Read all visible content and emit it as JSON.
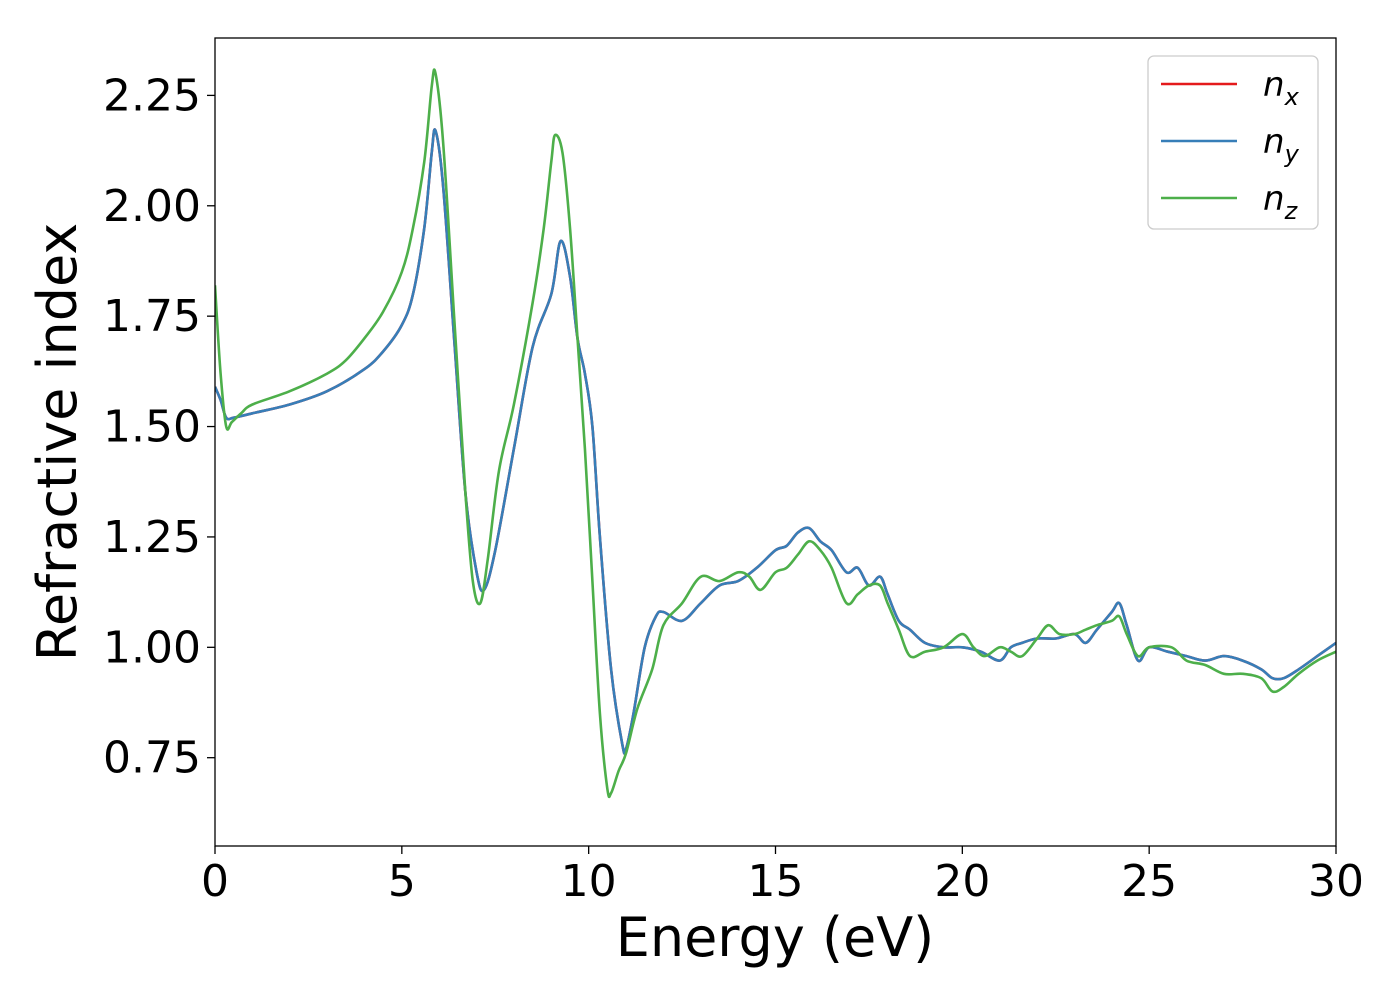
{
  "chart_data": {
    "type": "line",
    "xlabel": "Energy (eV)",
    "ylabel": "Refractive index",
    "xlim": [
      0,
      30
    ],
    "ylim": [
      0.55,
      2.38
    ],
    "xticks": [
      0,
      5,
      10,
      15,
      20,
      25,
      30
    ],
    "xtick_labels": [
      "0",
      "5",
      "10",
      "15",
      "20",
      "25",
      "30"
    ],
    "yticks": [
      0.75,
      1.0,
      1.25,
      1.5,
      1.75,
      2.0,
      2.25
    ],
    "ytick_labels": [
      "0.75",
      "1.00",
      "1.25",
      "1.50",
      "1.75",
      "2.00",
      "2.25"
    ],
    "grid": false,
    "legend_position": "top-right",
    "series": [
      {
        "name": "n",
        "subscript": "x",
        "color": "#e41a1c",
        "x": [
          0,
          0.15,
          0.3,
          0.5,
          1,
          2,
          3,
          4,
          4.5,
          5,
          5.3,
          5.6,
          5.8,
          5.9,
          6.1,
          6.4,
          6.7,
          7.0,
          7.2,
          7.5,
          8.0,
          8.5,
          9.0,
          9.25,
          9.5,
          9.7,
          9.9,
          10.1,
          10.3,
          10.6,
          10.9,
          11.0,
          11.2,
          11.5,
          11.8,
          12.0,
          12.5,
          13.0,
          13.5,
          14.0,
          14.5,
          15.0,
          15.3,
          15.6,
          15.9,
          16.2,
          16.5,
          16.9,
          17.2,
          17.5,
          17.8,
          18.0,
          18.3,
          18.6,
          19.0,
          19.5,
          20.0,
          20.5,
          21.0,
          21.3,
          21.6,
          22.0,
          22.5,
          23.0,
          23.3,
          23.6,
          24.0,
          24.2,
          24.4,
          24.7,
          25.0,
          25.5,
          26.0,
          26.5,
          27.0,
          27.5,
          28.0,
          28.3,
          28.6,
          29.0,
          29.5,
          30.0
        ],
        "values": [
          1.59,
          1.56,
          1.52,
          1.52,
          1.53,
          1.55,
          1.58,
          1.63,
          1.67,
          1.73,
          1.8,
          1.95,
          2.12,
          2.17,
          2.05,
          1.7,
          1.35,
          1.17,
          1.13,
          1.22,
          1.45,
          1.68,
          1.8,
          1.92,
          1.84,
          1.7,
          1.62,
          1.5,
          1.25,
          0.95,
          0.78,
          0.77,
          0.85,
          1.0,
          1.07,
          1.08,
          1.06,
          1.1,
          1.14,
          1.15,
          1.18,
          1.22,
          1.23,
          1.26,
          1.27,
          1.24,
          1.22,
          1.17,
          1.18,
          1.14,
          1.16,
          1.12,
          1.06,
          1.04,
          1.01,
          1.0,
          1.0,
          0.99,
          0.97,
          1.0,
          1.01,
          1.02,
          1.02,
          1.03,
          1.01,
          1.04,
          1.08,
          1.1,
          1.05,
          0.97,
          1.0,
          0.99,
          0.98,
          0.97,
          0.98,
          0.97,
          0.95,
          0.93,
          0.93,
          0.95,
          0.98,
          1.01
        ]
      },
      {
        "name": "n",
        "subscript": "y",
        "color": "#377eb8",
        "x": [
          0,
          0.15,
          0.3,
          0.5,
          1,
          2,
          3,
          4,
          4.5,
          5,
          5.3,
          5.6,
          5.8,
          5.9,
          6.1,
          6.4,
          6.7,
          7.0,
          7.2,
          7.5,
          8.0,
          8.5,
          9.0,
          9.25,
          9.5,
          9.7,
          9.9,
          10.1,
          10.3,
          10.6,
          10.9,
          11.0,
          11.2,
          11.5,
          11.8,
          12.0,
          12.5,
          13.0,
          13.5,
          14.0,
          14.5,
          15.0,
          15.3,
          15.6,
          15.9,
          16.2,
          16.5,
          16.9,
          17.2,
          17.5,
          17.8,
          18.0,
          18.3,
          18.6,
          19.0,
          19.5,
          20.0,
          20.5,
          21.0,
          21.3,
          21.6,
          22.0,
          22.5,
          23.0,
          23.3,
          23.6,
          24.0,
          24.2,
          24.4,
          24.7,
          25.0,
          25.5,
          26.0,
          26.5,
          27.0,
          27.5,
          28.0,
          28.3,
          28.6,
          29.0,
          29.5,
          30.0
        ],
        "values": [
          1.59,
          1.56,
          1.52,
          1.52,
          1.53,
          1.55,
          1.58,
          1.63,
          1.67,
          1.73,
          1.8,
          1.95,
          2.12,
          2.17,
          2.05,
          1.7,
          1.35,
          1.17,
          1.13,
          1.22,
          1.45,
          1.68,
          1.8,
          1.92,
          1.84,
          1.7,
          1.62,
          1.5,
          1.25,
          0.95,
          0.78,
          0.77,
          0.85,
          1.0,
          1.07,
          1.08,
          1.06,
          1.1,
          1.14,
          1.15,
          1.18,
          1.22,
          1.23,
          1.26,
          1.27,
          1.24,
          1.22,
          1.17,
          1.18,
          1.14,
          1.16,
          1.12,
          1.06,
          1.04,
          1.01,
          1.0,
          1.0,
          0.99,
          0.97,
          1.0,
          1.01,
          1.02,
          1.02,
          1.03,
          1.01,
          1.04,
          1.08,
          1.1,
          1.05,
          0.97,
          1.0,
          0.99,
          0.98,
          0.97,
          0.98,
          0.97,
          0.95,
          0.93,
          0.93,
          0.95,
          0.98,
          1.01
        ]
      },
      {
        "name": "n",
        "subscript": "z",
        "color": "#4daf4a",
        "x": [
          0,
          0.15,
          0.3,
          0.45,
          0.7,
          1,
          2,
          3,
          3.5,
          4,
          4.5,
          5,
          5.3,
          5.6,
          5.8,
          5.9,
          6.1,
          6.4,
          6.7,
          6.9,
          7.1,
          7.3,
          7.6,
          8.0,
          8.5,
          8.8,
          9.0,
          9.1,
          9.3,
          9.5,
          9.7,
          9.9,
          10.1,
          10.3,
          10.5,
          10.6,
          10.8,
          11.0,
          11.3,
          11.7,
          12.0,
          12.5,
          13.0,
          13.5,
          14.0,
          14.3,
          14.6,
          15.0,
          15.3,
          15.6,
          15.9,
          16.2,
          16.5,
          16.9,
          17.2,
          17.5,
          17.8,
          18.0,
          18.3,
          18.6,
          19.0,
          19.5,
          20.0,
          20.3,
          20.6,
          21.0,
          21.3,
          21.6,
          22.0,
          22.3,
          22.6,
          23.0,
          23.3,
          23.6,
          24.0,
          24.2,
          24.4,
          24.7,
          25.0,
          25.6,
          26.0,
          26.5,
          27.0,
          27.5,
          28.0,
          28.3,
          28.6,
          29.0,
          29.5,
          30.0
        ],
        "values": [
          1.82,
          1.62,
          1.5,
          1.51,
          1.53,
          1.55,
          1.58,
          1.62,
          1.65,
          1.7,
          1.76,
          1.85,
          1.95,
          2.1,
          2.27,
          2.3,
          2.15,
          1.75,
          1.35,
          1.15,
          1.1,
          1.2,
          1.4,
          1.55,
          1.78,
          1.95,
          2.1,
          2.16,
          2.12,
          1.95,
          1.7,
          1.45,
          1.15,
          0.85,
          0.68,
          0.67,
          0.72,
          0.76,
          0.86,
          0.95,
          1.05,
          1.1,
          1.16,
          1.15,
          1.17,
          1.16,
          1.13,
          1.17,
          1.18,
          1.21,
          1.24,
          1.22,
          1.18,
          1.1,
          1.12,
          1.14,
          1.14,
          1.1,
          1.04,
          0.98,
          0.99,
          1.0,
          1.03,
          1.0,
          0.98,
          1.0,
          0.99,
          0.98,
          1.02,
          1.05,
          1.03,
          1.03,
          1.04,
          1.05,
          1.06,
          1.07,
          1.03,
          0.98,
          1.0,
          1.0,
          0.97,
          0.96,
          0.94,
          0.94,
          0.93,
          0.9,
          0.91,
          0.94,
          0.97,
          0.99
        ]
      }
    ]
  }
}
